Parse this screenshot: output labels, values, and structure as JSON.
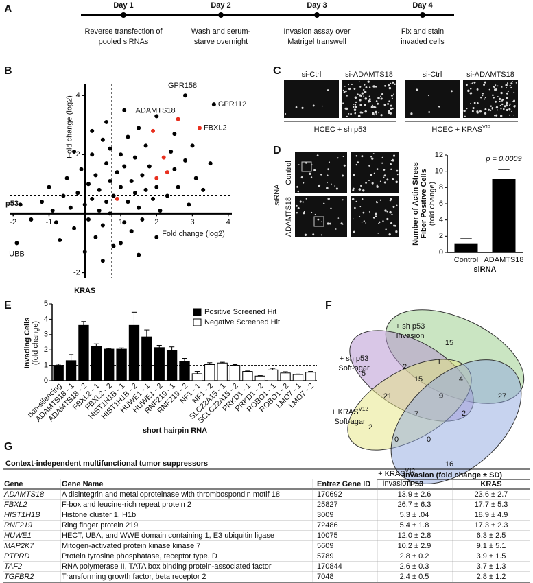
{
  "panels": [
    "A",
    "B",
    "C",
    "D",
    "E",
    "F",
    "G"
  ],
  "timeline": [
    {
      "day": "Day 1",
      "lines": [
        "Reverse transfection of",
        "pooled siRNAs"
      ]
    },
    {
      "day": "Day 2",
      "lines": [
        "Wash and serum-",
        "starve overnight"
      ]
    },
    {
      "day": "Day 3",
      "lines": [
        "Invasion assay over",
        "Matrigel transwell"
      ]
    },
    {
      "day": "Day 4",
      "lines": [
        "Fix and stain",
        "invaded cells"
      ]
    }
  ],
  "chart_data": [
    {
      "type": "scatter",
      "x": [
        -1.9,
        2.8,
        3.6,
        2.6,
        3.2,
        1.9,
        2.2,
        2.3,
        2.0,
        0.9,
        -1.8,
        -1.2,
        -1.0,
        -0.9,
        -0.8,
        -0.6,
        -0.5,
        -0.4,
        -0.3,
        -0.2,
        -0.1,
        0,
        0.1,
        0.1,
        0.2,
        0.2,
        0.3,
        0.3,
        0.4,
        0.4,
        0.5,
        0.5,
        0.6,
        0.6,
        0.7,
        0.7,
        0.7,
        0.8,
        0.8,
        0.9,
        1.0,
        1.0,
        1.1,
        1.1,
        1.2,
        1.2,
        1.3,
        1.3,
        1.4,
        1.4,
        1.5,
        1.5,
        1.6,
        1.6,
        1.7,
        1.7,
        1.8,
        1.9,
        2.0,
        2.0,
        2.1,
        2.4,
        2.3,
        2.5,
        2.5,
        2.6,
        2.8,
        2.9,
        3.0,
        3.1,
        3.3,
        3.5,
        -1.5,
        -0.7,
        0.0,
        0.5,
        1.0,
        1.5,
        2.0,
        -0.3,
        0.2,
        0.6,
        1.1
      ],
      "y": [
        -1.0,
        4.0,
        3.7,
        3.2,
        2.9,
        2.8,
        1.9,
        1.4,
        1.2,
        0.5,
        0.3,
        0.4,
        0.9,
        0.1,
        -0.3,
        0.6,
        1.2,
        0.2,
        -0.5,
        0.7,
        1.5,
        0.3,
        -0.2,
        1.0,
        2.0,
        0.5,
        -0.8,
        1.3,
        0.1,
        0.8,
        2.5,
        -0.4,
        0.4,
        1.7,
        0.0,
        1.1,
        2.2,
        0.6,
        -1.1,
        1.4,
        2.0,
        0.9,
        -0.3,
        1.6,
        0.4,
        2.6,
        1.1,
        -0.6,
        0.7,
        1.9,
        0.2,
        2.9,
        1.3,
        -0.2,
        0.8,
        2.3,
        1.6,
        0.5,
        0.9,
        3.3,
        0.1,
        2.1,
        0.6,
        1.5,
        2.7,
        0.9,
        1.8,
        0.3,
        2.3,
        1.2,
        0.8,
        1.7,
        -0.2,
        -0.9,
        -1.3,
        -1.6,
        -1.0,
        -1.4,
        -0.8,
        2.1,
        2.8,
        3.1,
        3.5
      ],
      "color": "#000000",
      "highlight_color": "#e8301f",
      "highlighted": [
        3,
        4,
        5,
        6,
        7,
        8,
        9
      ],
      "point_labels": [
        {
          "index": 0,
          "text": "UBB"
        },
        {
          "index": 1,
          "text": "GPR158"
        },
        {
          "index": 2,
          "text": "GPR112"
        },
        {
          "index": 3,
          "text": "ADAMTS18"
        },
        {
          "index": 4,
          "text": "FBXL2"
        }
      ],
      "xlim": [
        -2.1,
        4.1
      ],
      "ylim": [
        -2.2,
        4.4
      ],
      "xticks": [
        -2,
        -1,
        1,
        2,
        3,
        4
      ],
      "yticks": [
        -2,
        2,
        4
      ],
      "threshold_x": 0.75,
      "threshold_y": 0.6,
      "xlabel": "Fold change (log2)",
      "ylabel": "Fold change (log2)",
      "x_axis_name": "p53",
      "y_axis_name": "KRAS"
    },
    {
      "type": "bar",
      "categories": [
        "Control",
        "ADAMTS18"
      ],
      "values": [
        1.0,
        9.0
      ],
      "errors": [
        0.7,
        1.2
      ],
      "color": "#000000",
      "ylim": [
        0,
        12
      ],
      "yticks": [
        0,
        2,
        4,
        6,
        8,
        10,
        12
      ],
      "ylabel": [
        "Number of Actin Stress",
        "Fiber Positive Cells",
        "(fold change)"
      ],
      "xlabel": "siRNA",
      "annotation": "p = 0.0009"
    },
    {
      "type": "bar",
      "categories": [
        "non-silencing",
        "ADAMTS18 - 1",
        "ADAMTS18 - 2",
        "FBXL2 - 1",
        "FBXL2 - 2",
        "HIST1H1B - 1",
        "HIST1H1B - 2",
        "HUWE1 - 1",
        "HUWE1 - 2",
        "RNF219 - 1",
        "RNF219 - 2",
        "NF1 - 1",
        "NF1 - 2",
        "SLC22A15 - 1",
        "SCLC22A15 - 2",
        "PRKD1 - 1",
        "PRKD1 - 2",
        "ROBO1 - 1",
        "ROBO1 - 2",
        "LMO7 - 1",
        "LMO7 - 2"
      ],
      "series": [
        {
          "name": "Positive Screened Hit",
          "color": "#000000",
          "values": [
            1.0,
            1.3,
            3.6,
            2.25,
            2.05,
            2.05,
            3.6,
            2.85,
            2.15,
            1.95,
            1.25,
            null,
            null,
            null,
            null,
            null,
            null,
            null,
            null,
            null,
            null
          ],
          "errors": [
            0.08,
            0.4,
            0.25,
            0.15,
            0.05,
            0.08,
            0.85,
            0.45,
            0.15,
            0.25,
            0.2,
            null,
            null,
            null,
            null,
            null,
            null,
            null,
            null,
            null,
            null
          ]
        },
        {
          "name": "Negative Screened Hit",
          "color": "#ffffff",
          "values": [
            null,
            null,
            null,
            null,
            null,
            null,
            null,
            null,
            null,
            null,
            null,
            0.45,
            1.05,
            1.15,
            1.0,
            0.6,
            0.3,
            0.7,
            0.5,
            0.4,
            0.55
          ],
          "errors": [
            null,
            null,
            null,
            null,
            null,
            null,
            null,
            null,
            null,
            null,
            null,
            0.15,
            0.12,
            0.05,
            0.05,
            0.03,
            0.03,
            0.1,
            0.08,
            0.03,
            0.05
          ]
        }
      ],
      "ylim": [
        0,
        5
      ],
      "yticks": [
        0,
        1,
        2,
        3,
        4,
        5
      ],
      "reference_line": 1,
      "ylabel": [
        "Invading Cells",
        "(fold change)"
      ],
      "xlabel": "short hairpin RNA"
    }
  ],
  "c_panel": {
    "columns": [
      "si-Ctrl",
      "si-ADAMTS18",
      "si-Ctrl",
      "si-ADAMTS18"
    ],
    "groups": [
      {
        "text": "HCEC + sh p53"
      },
      {
        "text": "HCEC + KRAS",
        "sup": "V12"
      }
    ]
  },
  "d_panel": {
    "rows": [
      "Control",
      "ADAMTS18"
    ],
    "side_label": "siRNA"
  },
  "venn": {
    "sets": [
      {
        "line1": "+ sh p53",
        "line2": "Invasion"
      },
      {
        "line1": "+ sh p53",
        "line2": "Soft-agar"
      },
      {
        "line1": "+ KRAS",
        "sup": "V12",
        "line2": "Soft-agar"
      },
      {
        "line1": "+ KRAS",
        "sup": "V12",
        "line2": "Invasion"
      }
    ],
    "counts": [
      15,
      2,
      1,
      5,
      15,
      4,
      27,
      21,
      9,
      2,
      2,
      7,
      0,
      0,
      16
    ]
  },
  "table": {
    "title": "Context-independent multifunctional tumor suppressors",
    "group_header": "Invasion (fold change ± SD)",
    "header": [
      "Gene",
      "Gene Name",
      "Entrez Gene ID",
      "TP53",
      "KRAS"
    ],
    "rows": [
      [
        "ADAMTS18",
        "A disintegrin and metalloproteinase with thrombospondin motif 18",
        "170692",
        "13.9 ± 2.6",
        "23.6 ± 2.7"
      ],
      [
        "FBXL2",
        "F-box and leucine-rich repeat protein 2",
        "25827",
        "26.7 ± 6.3",
        "17.7 ± 5.3"
      ],
      [
        "HIST1H1B",
        "Histone cluster 1, H1b",
        "3009",
        "5.3 ± .04",
        "18.9 ± 4.9"
      ],
      [
        "RNF219",
        "Ring finger protein 219",
        "72486",
        "5.4 ± 1.8",
        "17.3 ± 2.3"
      ],
      [
        "HUWE1",
        "HECT, UBA, and WWE domain containing 1, E3 ubiquitin ligase",
        "10075",
        "12.0 ± 2.8",
        "6.3 ± 2.5"
      ],
      [
        "MAP2K7",
        "Mitogen-activated protein kinase kinase 7",
        "5609",
        "10.2 ± 2.9",
        "9.1 ± 5.1"
      ],
      [
        "PTPRD",
        "Protein tyrosine phosphatase, receptor type, D",
        "5789",
        "2.8 ± 0.2",
        "3.9 ± 1.5"
      ],
      [
        "TAF2",
        "RNA polymerase II, TATA box binding protein-associated factor",
        "170844",
        "2.6 ± 0.3",
        "3.7 ± 1.3"
      ],
      [
        "TGFBR2",
        "Transforming growth factor, beta receptor 2",
        "7048",
        "2.4 ± 0.5",
        "2.8 ± 1.2"
      ]
    ]
  }
}
